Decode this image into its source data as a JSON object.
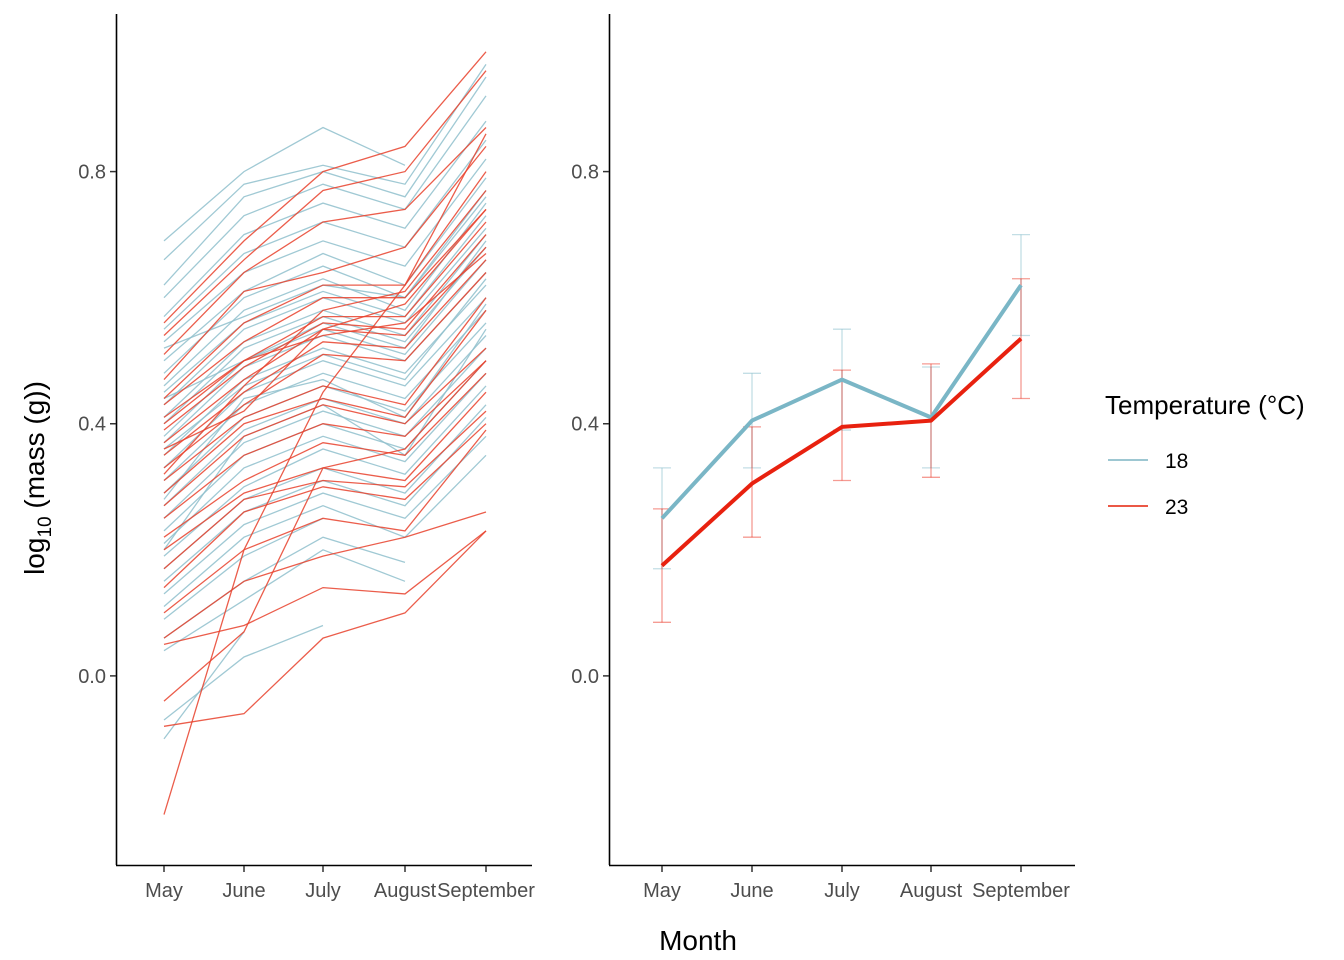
{
  "chart_data": [
    {
      "type": "line",
      "panel": "individual trajectories",
      "categories": [
        "May",
        "June",
        "July",
        "August",
        "September"
      ],
      "ylabel_parts": [
        "log",
        "10",
        " (mass (g))"
      ],
      "ylim": [
        -0.3,
        1.05
      ],
      "yticks": [
        0.0,
        0.4,
        0.8
      ],
      "ytick_labels": [
        "0.0",
        "0.4",
        "0.8"
      ],
      "series": [
        {
          "group": "18",
          "values": [
            0.69,
            0.8,
            0.87,
            0.81,
            null
          ]
        },
        {
          "group": "18",
          "values": [
            0.66,
            0.78,
            0.81,
            0.78,
            0.97
          ]
        },
        {
          "group": "18",
          "values": [
            0.62,
            0.76,
            0.8,
            0.76,
            0.95
          ]
        },
        {
          "group": "18",
          "values": [
            0.6,
            0.73,
            0.78,
            0.74,
            0.92
          ]
        },
        {
          "group": "18",
          "values": [
            0.57,
            0.7,
            0.75,
            0.71,
            0.88
          ]
        },
        {
          "group": "18",
          "values": [
            0.55,
            0.67,
            0.72,
            0.68,
            0.85
          ]
        },
        {
          "group": "18",
          "values": [
            0.53,
            0.64,
            0.69,
            0.65,
            0.82
          ]
        },
        {
          "group": "18",
          "values": [
            0.5,
            0.61,
            0.67,
            0.62,
            0.79
          ]
        },
        {
          "group": "18",
          "values": [
            0.48,
            0.6,
            0.65,
            0.6,
            0.77
          ]
        },
        {
          "group": "18",
          "values": [
            0.46,
            0.58,
            0.63,
            0.58,
            0.75
          ]
        },
        {
          "group": "18",
          "values": [
            0.45,
            0.56,
            0.61,
            0.57,
            0.73
          ]
        },
        {
          "group": "18",
          "values": [
            0.43,
            0.55,
            0.6,
            0.56,
            0.71
          ]
        },
        {
          "group": "18",
          "values": [
            0.41,
            0.53,
            0.58,
            0.54,
            0.7
          ]
        },
        {
          "group": "18",
          "values": [
            0.4,
            0.52,
            0.57,
            0.53,
            0.68
          ]
        },
        {
          "group": "18",
          "values": [
            0.38,
            0.5,
            0.55,
            0.51,
            0.66
          ]
        },
        {
          "group": "18",
          "values": [
            0.37,
            0.49,
            0.54,
            0.5,
            0.64
          ]
        },
        {
          "group": "18",
          "values": [
            0.35,
            0.47,
            0.52,
            0.48,
            0.62
          ]
        },
        {
          "group": "18",
          "values": [
            0.33,
            0.45,
            0.5,
            0.46,
            0.6
          ]
        },
        {
          "group": "18",
          "values": [
            0.31,
            0.43,
            0.48,
            0.44,
            0.58
          ]
        },
        {
          "group": "18",
          "values": [
            0.29,
            0.41,
            0.46,
            0.42,
            0.56
          ]
        },
        {
          "group": "18",
          "values": [
            0.27,
            0.39,
            0.44,
            0.4,
            0.54
          ]
        },
        {
          "group": "18",
          "values": [
            0.25,
            0.37,
            0.42,
            0.38,
            0.52
          ]
        },
        {
          "group": "18",
          "values": [
            0.23,
            0.35,
            0.4,
            0.36,
            0.5
          ]
        },
        {
          "group": "18",
          "values": [
            0.21,
            0.33,
            0.38,
            0.34,
            0.48
          ]
        },
        {
          "group": "18",
          "values": [
            0.19,
            0.3,
            0.36,
            0.32,
            0.46
          ]
        },
        {
          "group": "18",
          "values": [
            0.17,
            0.28,
            0.33,
            0.29,
            0.43
          ]
        },
        {
          "group": "18",
          "values": [
            0.15,
            0.26,
            0.31,
            0.27,
            0.41
          ]
        },
        {
          "group": "18",
          "values": [
            0.13,
            0.24,
            0.29,
            0.25,
            0.38
          ]
        },
        {
          "group": "18",
          "values": [
            0.11,
            0.22,
            0.27,
            0.22,
            0.35
          ]
        },
        {
          "group": "18",
          "values": [
            0.09,
            0.19,
            0.25,
            null,
            null
          ]
        },
        {
          "group": "18",
          "values": [
            0.06,
            0.15,
            0.22,
            0.18,
            null
          ]
        },
        {
          "group": "18",
          "values": [
            0.04,
            0.12,
            0.2,
            0.15,
            null
          ]
        },
        {
          "group": "18",
          "values": [
            -0.07,
            0.03,
            0.08,
            null,
            null
          ]
        },
        {
          "group": "18",
          "values": [
            -0.1,
            0.07,
            null,
            null,
            null
          ]
        },
        {
          "group": "18",
          "values": [
            0.52,
            0.57,
            0.62,
            0.6,
            0.76
          ]
        },
        {
          "group": "18",
          "values": [
            0.44,
            0.5,
            0.56,
            0.52,
            0.69
          ]
        },
        {
          "group": "18",
          "values": [
            0.36,
            0.46,
            0.51,
            0.47,
            0.63
          ]
        },
        {
          "group": "18",
          "values": [
            0.28,
            0.44,
            0.47,
            0.41,
            0.59
          ]
        },
        {
          "group": "18",
          "values": [
            0.2,
            0.38,
            0.43,
            0.35,
            0.55
          ]
        },
        {
          "group": "23",
          "values": [
            0.56,
            0.69,
            0.8,
            0.84,
            0.99
          ]
        },
        {
          "group": "23",
          "values": [
            0.54,
            0.66,
            0.77,
            0.8,
            0.96
          ]
        },
        {
          "group": "23",
          "values": [
            0.51,
            0.64,
            0.72,
            0.74,
            0.87
          ]
        },
        {
          "group": "23",
          "values": [
            0.47,
            0.61,
            0.64,
            0.68,
            0.84
          ]
        },
        {
          "group": "23",
          "values": [
            0.44,
            0.56,
            0.62,
            0.62,
            0.8
          ]
        },
        {
          "group": "23",
          "values": [
            0.43,
            0.53,
            0.6,
            0.6,
            0.74
          ]
        },
        {
          "group": "23",
          "values": [
            0.41,
            0.5,
            0.57,
            0.57,
            0.72
          ]
        },
        {
          "group": "23",
          "values": [
            0.39,
            0.49,
            0.56,
            0.55,
            0.7
          ]
        },
        {
          "group": "23",
          "values": [
            0.37,
            0.47,
            0.55,
            0.54,
            0.68
          ]
        },
        {
          "group": "23",
          "values": [
            0.35,
            0.45,
            0.53,
            0.52,
            0.66
          ]
        },
        {
          "group": "23",
          "values": [
            0.33,
            0.43,
            0.51,
            0.5,
            0.64
          ]
        },
        {
          "group": "23",
          "values": [
            0.31,
            0.41,
            0.46,
            0.43,
            0.6
          ]
        },
        {
          "group": "23",
          "values": [
            0.29,
            0.4,
            0.44,
            0.41,
            0.58
          ]
        },
        {
          "group": "23",
          "values": [
            0.27,
            0.38,
            0.43,
            0.4,
            0.52
          ]
        },
        {
          "group": "23",
          "values": [
            0.25,
            0.35,
            0.4,
            0.38,
            0.5
          ]
        },
        {
          "group": "23",
          "values": [
            0.22,
            0.31,
            0.37,
            0.35,
            0.48
          ]
        },
        {
          "group": "23",
          "values": [
            0.2,
            0.29,
            0.33,
            0.31,
            0.45
          ]
        },
        {
          "group": "23",
          "values": [
            0.17,
            0.28,
            0.31,
            0.3,
            0.42
          ]
        },
        {
          "group": "23",
          "values": [
            0.14,
            0.26,
            0.3,
            0.28,
            0.4
          ]
        },
        {
          "group": "23",
          "values": [
            0.1,
            0.2,
            0.25,
            0.23,
            0.39
          ]
        },
        {
          "group": "23",
          "values": [
            0.06,
            0.15,
            0.19,
            0.22,
            0.26
          ]
        },
        {
          "group": "23",
          "values": [
            0.05,
            0.08,
            0.14,
            0.13,
            0.23
          ]
        },
        {
          "group": "23",
          "values": [
            -0.04,
            0.07,
            0.33,
            0.36,
            0.5
          ]
        },
        {
          "group": "23",
          "values": [
            -0.08,
            -0.06,
            0.06,
            0.1,
            0.23
          ]
        },
        {
          "group": "23",
          "values": [
            -0.22,
            0.2,
            0.45,
            0.62,
            0.86
          ]
        },
        {
          "group": "23",
          "values": [
            0.4,
            0.5,
            0.54,
            0.56,
            0.67
          ]
        },
        {
          "group": "23",
          "values": [
            0.36,
            0.42,
            0.55,
            0.59,
            0.74
          ]
        },
        {
          "group": "23",
          "values": [
            0.32,
            0.46,
            0.58,
            0.61,
            0.77
          ]
        }
      ]
    },
    {
      "type": "line",
      "panel": "group means with error bars",
      "categories": [
        "May",
        "June",
        "July",
        "August",
        "September"
      ],
      "xlabel": "Month",
      "ylim": [
        -0.3,
        1.05
      ],
      "yticks": [
        0.0,
        0.4,
        0.8
      ],
      "ytick_labels": [
        "0.0",
        "0.4",
        "0.8"
      ],
      "series": [
        {
          "name": "18",
          "values": [
            0.25,
            0.405,
            0.47,
            0.41,
            0.62
          ],
          "lower": [
            0.17,
            0.33,
            0.39,
            0.33,
            0.54
          ],
          "upper": [
            0.33,
            0.48,
            0.55,
            0.49,
            0.7
          ]
        },
        {
          "name": "23",
          "values": [
            0.175,
            0.305,
            0.395,
            0.405,
            0.535
          ],
          "lower": [
            0.085,
            0.22,
            0.31,
            0.315,
            0.44
          ],
          "upper": [
            0.265,
            0.395,
            0.485,
            0.495,
            0.63
          ]
        }
      ]
    }
  ],
  "legend": {
    "title": "Temperature (°C)",
    "placement": "right",
    "items": [
      {
        "label": "18",
        "color": "#8fbfcc"
      },
      {
        "label": "23",
        "color": "#e8412c"
      }
    ]
  },
  "colors": {
    "g18": "#8fbfcc",
    "g23": "#e8412c",
    "mean18": "#7ab6c6",
    "mean23": "#e8210f"
  }
}
